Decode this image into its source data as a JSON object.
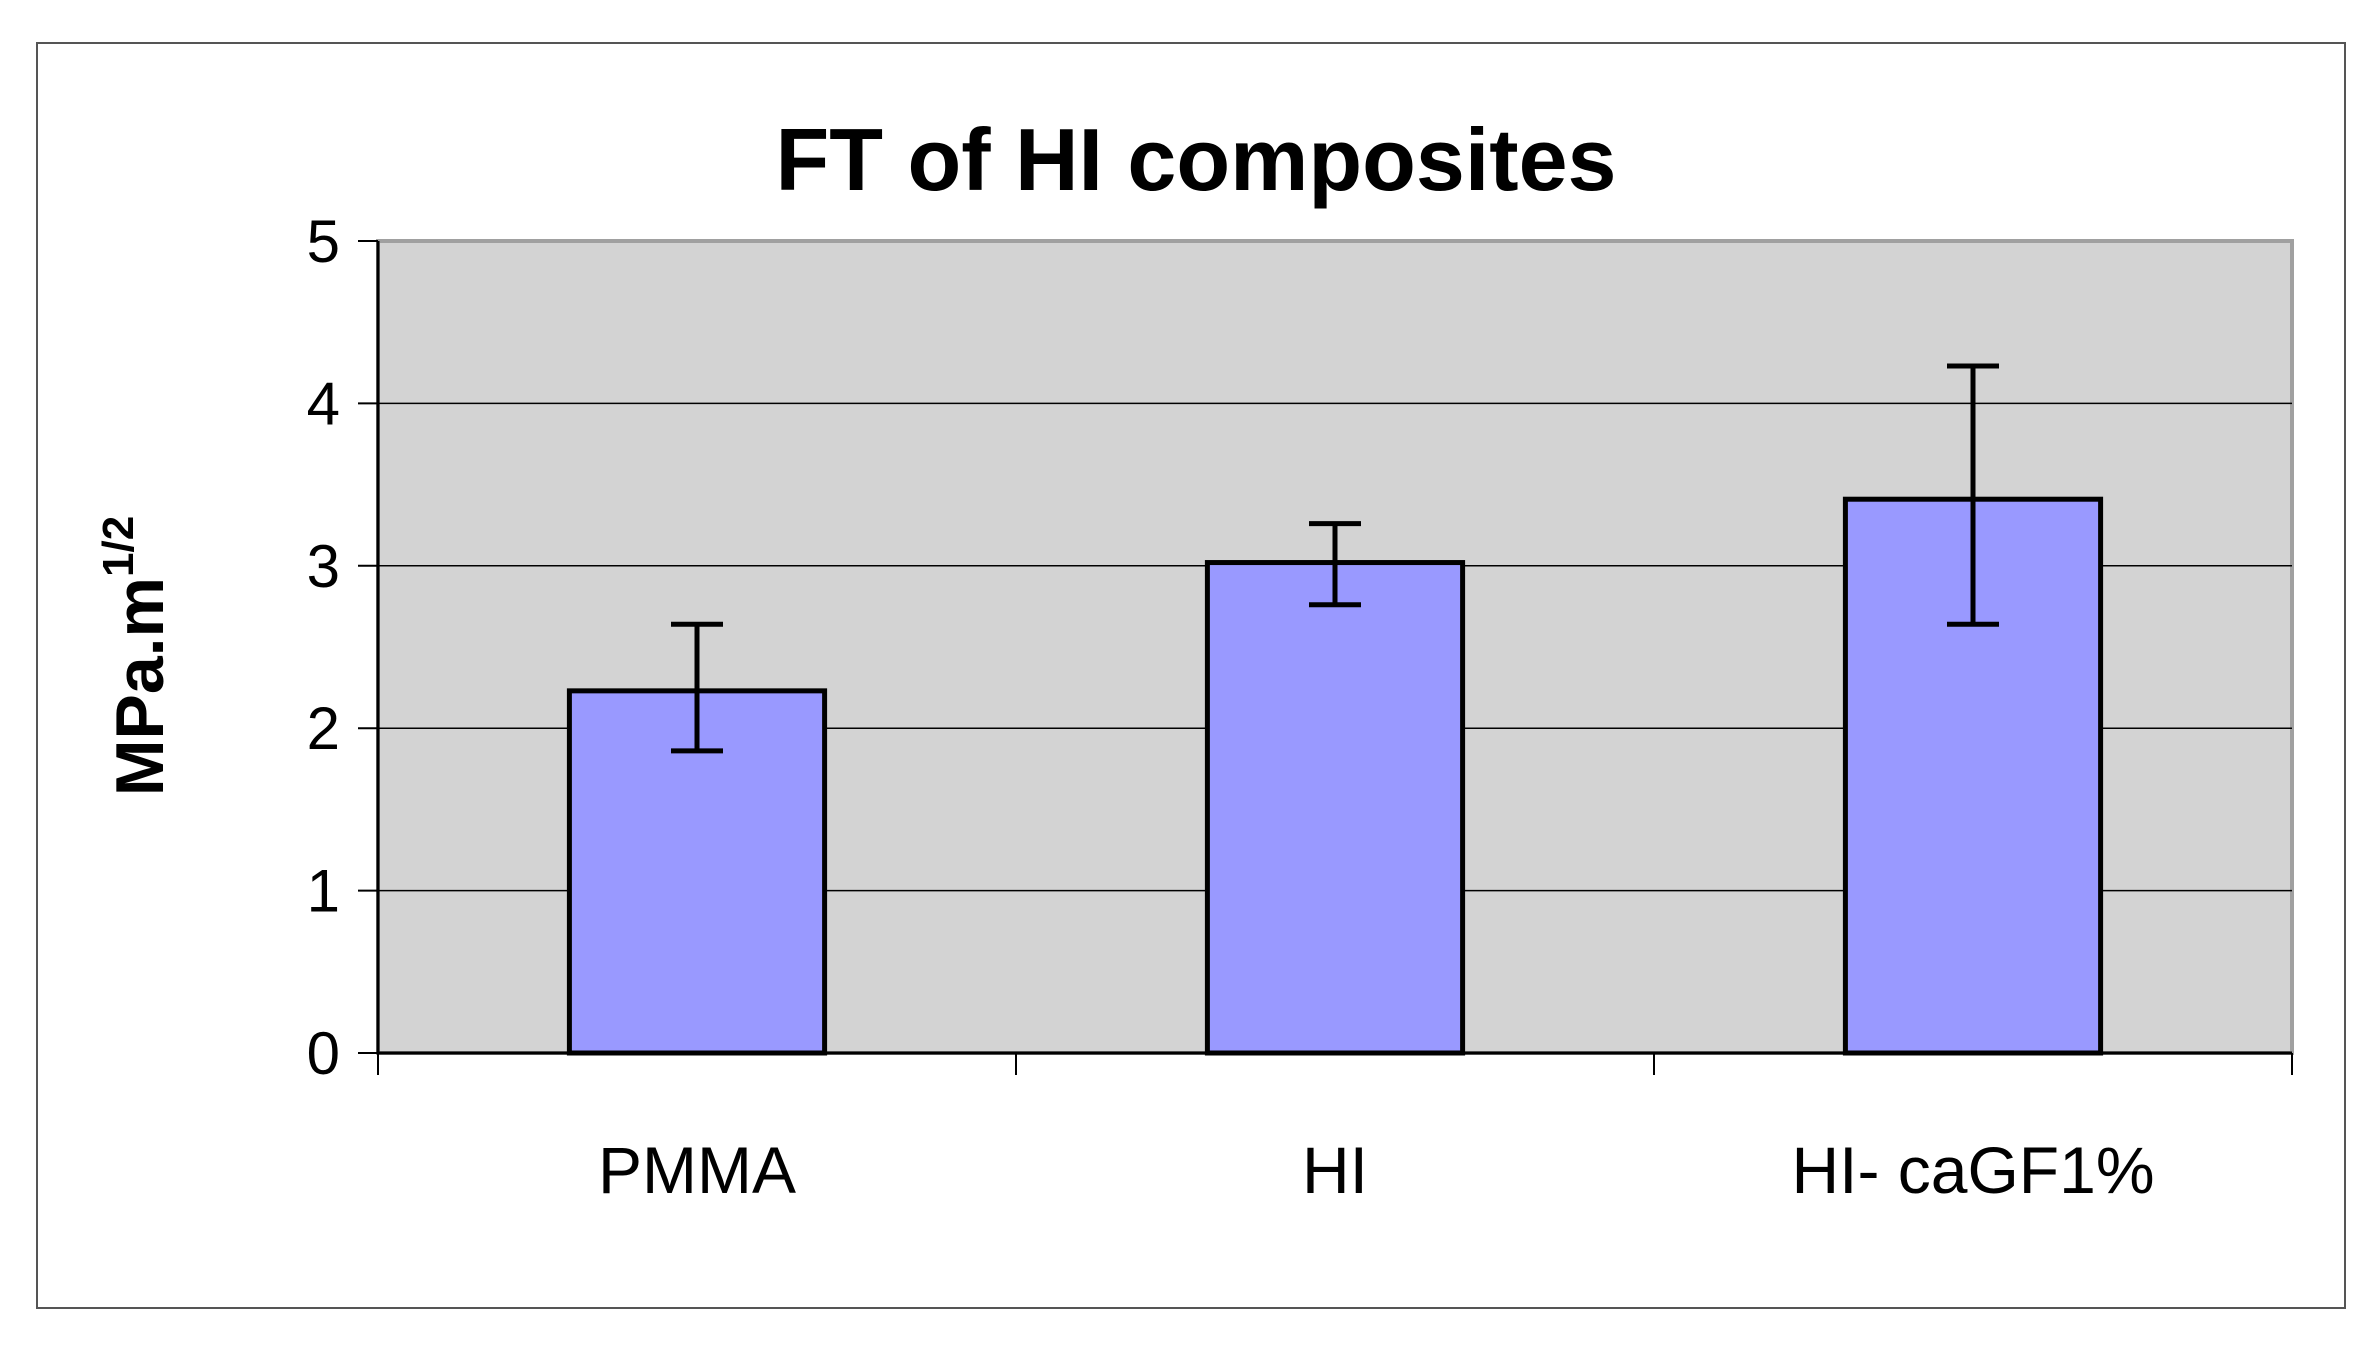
{
  "chart_data": {
    "type": "bar",
    "title": "FT of HI composites",
    "xlabel": "",
    "ylabel": "MPa.m",
    "ylabel_superscript": "1/2",
    "categories": [
      "PMMA",
      "HI",
      "HI- caGF1%"
    ],
    "values": [
      2.23,
      3.02,
      3.41
    ],
    "error_upper": [
      2.64,
      3.26,
      4.23
    ],
    "error_lower": [
      1.86,
      2.76,
      2.64
    ],
    "ylim": [
      0,
      5
    ],
    "yticks": [
      "0",
      "1",
      "2",
      "3",
      "4",
      "5"
    ],
    "grid": true,
    "legend": "none"
  },
  "colors": {
    "bar_fill": "#9999ff",
    "bar_stroke": "#000000",
    "plot_background": "#d3d3d3",
    "gridline": "#000000",
    "plot_border": "#a0a0a0"
  }
}
